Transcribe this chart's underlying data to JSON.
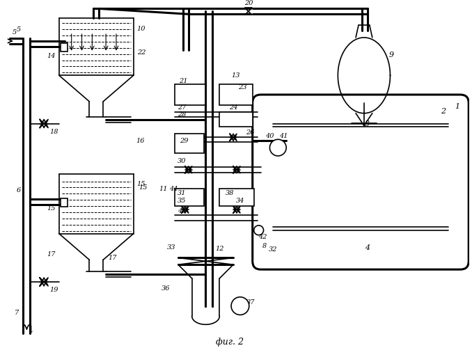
{
  "title": "фиг. 2",
  "bg_color": "#ffffff",
  "line_color": "#000000",
  "figsize": [
    6.78,
    5.0
  ],
  "dpi": 100
}
